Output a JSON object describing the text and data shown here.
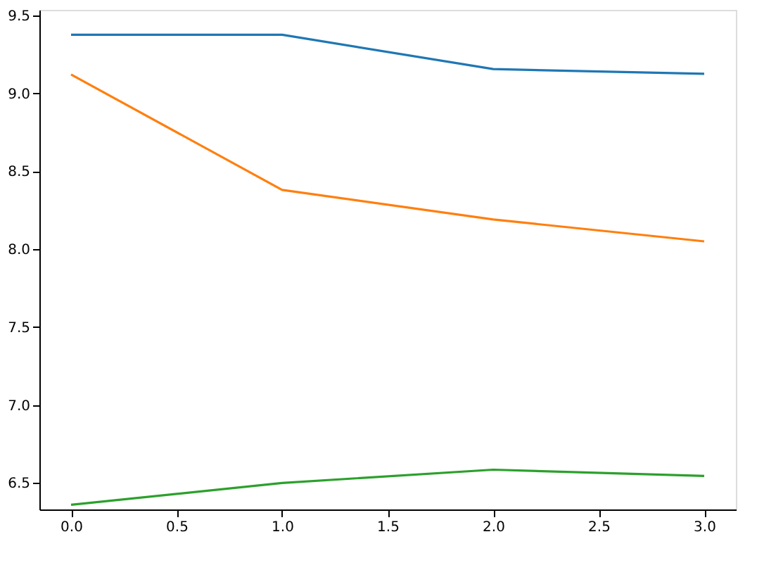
{
  "chart_data": {
    "type": "line",
    "x": [
      0,
      1,
      2,
      3
    ],
    "series": [
      {
        "color": "#1f77b4",
        "values": [
          9.375,
          9.375,
          9.155,
          9.125
        ]
      },
      {
        "color": "#ff7f0e",
        "values": [
          9.12,
          8.38,
          8.19,
          8.05
        ]
      },
      {
        "color": "#2ca02c",
        "values": [
          6.36,
          6.5,
          6.585,
          6.545
        ]
      }
    ],
    "xlim": [
      -0.15,
      3.15
    ],
    "xticks": [
      {
        "value": 0,
        "label": "0.0"
      },
      {
        "value": 0.5,
        "label": "0.5"
      },
      {
        "value": 1,
        "label": "1.0"
      },
      {
        "value": 1.5,
        "label": "1.5"
      },
      {
        "value": 2,
        "label": "2.0"
      },
      {
        "value": 2.5,
        "label": "2.5"
      },
      {
        "value": 3,
        "label": "3.0"
      }
    ],
    "ylim": [
      6.33,
      9.535
    ],
    "yticks": [
      {
        "value": 6.5,
        "label": "6.5"
      },
      {
        "value": 7,
        "label": "7.0"
      },
      {
        "value": 7.5,
        "label": "7.5"
      },
      {
        "value": 8,
        "label": "8.0"
      },
      {
        "value": 8.5,
        "label": "8.5"
      },
      {
        "value": 9,
        "label": "9.0"
      },
      {
        "value": 9.5,
        "label": "9.5"
      }
    ],
    "grid": false,
    "legend": false,
    "marker": "none",
    "line_style": "solid"
  }
}
